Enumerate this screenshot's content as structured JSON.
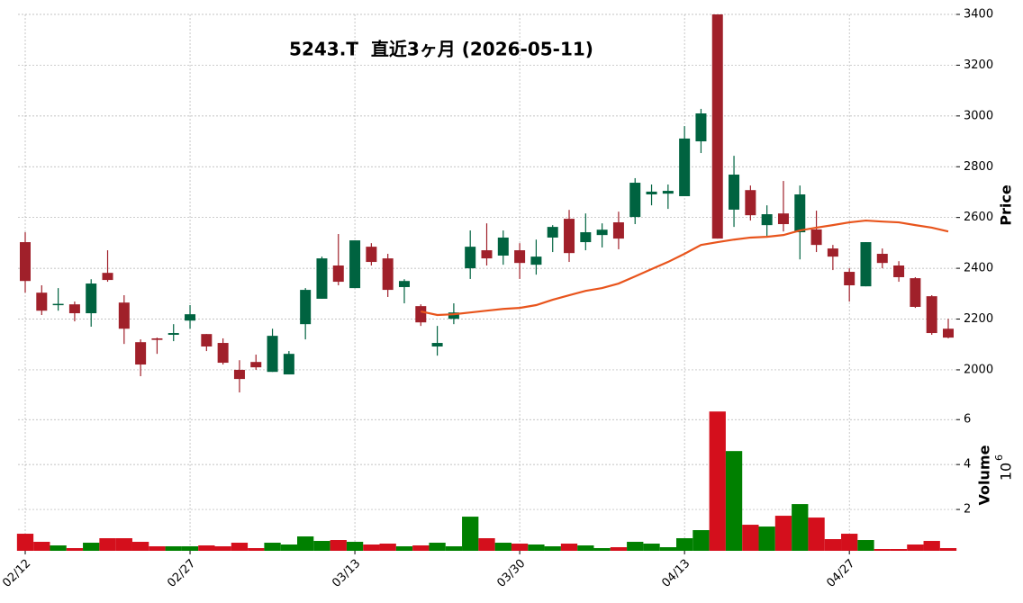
{
  "chart_data": {
    "type": "candlestick",
    "title": "5243.T  直近3ヶ月 (2026-05-11)",
    "categories": [
      "02/12",
      null,
      null,
      null,
      null,
      null,
      null,
      null,
      null,
      null,
      "02/27",
      null,
      null,
      null,
      null,
      null,
      null,
      null,
      null,
      null,
      "03/13",
      null,
      null,
      null,
      null,
      null,
      null,
      null,
      null,
      null,
      "03/30",
      null,
      null,
      null,
      null,
      null,
      null,
      null,
      null,
      null,
      "04/13",
      null,
      null,
      null,
      null,
      null,
      null,
      null,
      null,
      null,
      "04/27",
      null,
      null,
      null,
      null,
      null,
      null
    ],
    "open": [
      2503,
      2304,
      2255,
      2258,
      2223,
      2382,
      2265,
      2109,
      2124,
      2138,
      2194,
      2141,
      2106,
      2000,
      2031,
      1992,
      1982,
      2180,
      2280,
      2411,
      2322,
      2485,
      2439,
      2326,
      2251,
      2092,
      2201,
      2400,
      2471,
      2450,
      2471,
      2414,
      2521,
      2595,
      2503,
      2531,
      2581,
      2602,
      2691,
      2694,
      2684,
      2900,
      3400,
      2631,
      2708,
      2570,
      2616,
      2542,
      2553,
      2478,
      2386,
      2329,
      2457,
      2411,
      2361,
      2290,
      2162
    ],
    "high": [
      2542,
      2333,
      2322,
      2269,
      2357,
      2471,
      2294,
      2120,
      2127,
      2180,
      2255,
      2141,
      2124,
      2038,
      2060,
      2162,
      2074,
      2322,
      2446,
      2535,
      2510,
      2499,
      2457,
      2357,
      2258,
      2173,
      2262,
      2549,
      2577,
      2549,
      2499,
      2513,
      2570,
      2630,
      2616,
      2577,
      2623,
      2755,
      2730,
      2730,
      2960,
      3028,
      3400,
      2843,
      2726,
      2648,
      2744,
      2726,
      2627,
      2492,
      2400,
      2503,
      2478,
      2428,
      2365,
      2294,
      2201
    ],
    "low": [
      2304,
      2216,
      2233,
      2191,
      2170,
      2347,
      2102,
      1975,
      2063,
      2113,
      2162,
      2074,
      2021,
      1911,
      2000,
      1992,
      1982,
      2120,
      2280,
      2333,
      2322,
      2411,
      2287,
      2262,
      2173,
      2056,
      2180,
      2358,
      2411,
      2414,
      2358,
      2375,
      2464,
      2425,
      2471,
      2482,
      2475,
      2574,
      2648,
      2634,
      2684,
      2854,
      2517,
      2563,
      2588,
      2528,
      2545,
      2435,
      2464,
      2393,
      2269,
      2329,
      2400,
      2347,
      2244,
      2138,
      2124
    ],
    "close": [
      2350,
      2233,
      2260,
      2223,
      2340,
      2354,
      2162,
      2021,
      2118,
      2145,
      2219,
      2092,
      2028,
      1964,
      2010,
      2134,
      2063,
      2315,
      2439,
      2347,
      2510,
      2425,
      2315,
      2350,
      2187,
      2106,
      2226,
      2485,
      2439,
      2521,
      2421,
      2446,
      2563,
      2460,
      2542,
      2552,
      2517,
      2737,
      2702,
      2705,
      2911,
      3010,
      2517,
      2769,
      2609,
      2613,
      2574,
      2691,
      2492,
      2446,
      2333,
      2503,
      2421,
      2365,
      2248,
      2145,
      2127
    ],
    "up_color": "#006340",
    "down_color": "#a0202a",
    "ylabel": "Price",
    "ylim": [
      1897,
      3400
    ],
    "yticks": [
      2000,
      2200,
      2400,
      2600,
      2800,
      3000,
      3200,
      3400
    ],
    "grid": true,
    "moving_average": {
      "color": "#e8541c",
      "values": [
        null,
        null,
        null,
        null,
        null,
        null,
        null,
        null,
        null,
        null,
        null,
        null,
        null,
        null,
        null,
        null,
        null,
        null,
        null,
        null,
        null,
        null,
        null,
        null,
        2230,
        2216,
        2219,
        2226,
        2233,
        2240,
        2244,
        2255,
        2276,
        2294,
        2311,
        2322,
        2340,
        2368,
        2397,
        2425,
        2457,
        2492,
        2503,
        2513,
        2521,
        2524,
        2531,
        2549,
        2560,
        2570,
        2581,
        2588,
        2584,
        2581,
        2570,
        2560,
        2545
      ]
    },
    "volume": {
      "ylabel": "Volume",
      "multiplier": "10",
      "exponent": "6",
      "up_color": "#008000",
      "down_color": "#d40f1c",
      "values": [
        0.92,
        0.56,
        0.4,
        0.28,
        0.52,
        0.72,
        0.72,
        0.56,
        0.36,
        0.36,
        0.36,
        0.4,
        0.36,
        0.52,
        0.28,
        0.52,
        0.44,
        0.8,
        0.6,
        0.64,
        0.56,
        0.44,
        0.48,
        0.36,
        0.4,
        0.52,
        0.36,
        1.68,
        0.72,
        0.52,
        0.48,
        0.44,
        0.36,
        0.48,
        0.4,
        0.28,
        0.32,
        0.56,
        0.48,
        0.32,
        0.72,
        1.08,
        6.36,
        4.6,
        1.32,
        1.24,
        1.72,
        2.24,
        1.64,
        0.68,
        0.92,
        0.64,
        0.24,
        0.24,
        0.44,
        0.6,
        0.28
      ],
      "ylim": [
        0.16,
        6.85
      ],
      "yticks": [
        2,
        4,
        6
      ]
    }
  }
}
